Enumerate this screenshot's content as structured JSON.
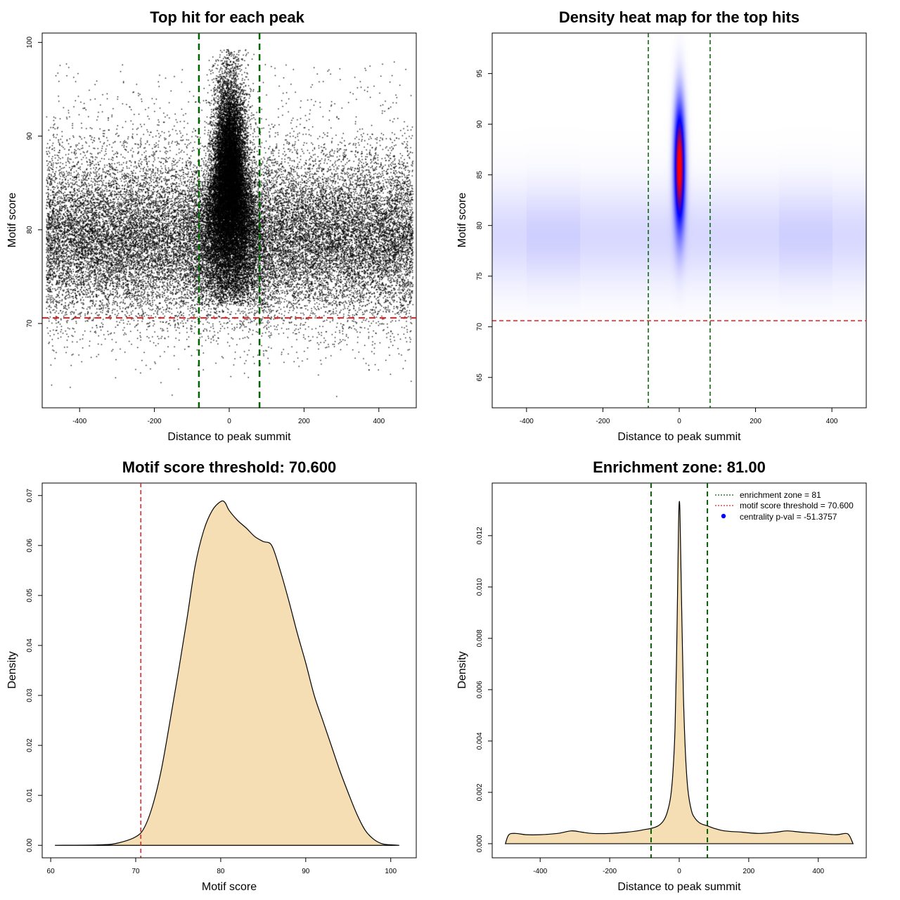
{
  "chart_data": [
    {
      "type": "scatter",
      "title": "Top hit for each peak",
      "xlabel": "Distance to peak summit",
      "ylabel": "Motif score",
      "xlim": [
        -500,
        500
      ],
      "ylim": [
        61,
        101
      ],
      "xticks": [
        -400,
        -200,
        0,
        200,
        400
      ],
      "yticks": [
        70,
        80,
        90,
        100
      ],
      "xtick_labels": [
        "-400",
        "-200",
        "0",
        "200",
        "400"
      ],
      "ytick_labels": [
        "70",
        "80",
        "90",
        "100"
      ],
      "background_point_count": 26000,
      "central_point_count": 20000,
      "background_score_mean": 79,
      "background_score_sd": 4.3,
      "central_position_sd": 22,
      "central_score_mean": 84,
      "central_score_sd": 5.5,
      "central_score_max": 99.3,
      "vlines": [
        -81,
        81
      ],
      "hline": 70.6,
      "vline_color": "#006400",
      "hline_color": "#e02020",
      "point_color": "#000000"
    },
    {
      "type": "heatmap",
      "title": "Density heat map for the top hits",
      "xlabel": "Distance to peak summit",
      "ylabel": "Motif score",
      "xlim": [
        -490,
        490
      ],
      "ylim": [
        62,
        99
      ],
      "xticks": [
        -400,
        -200,
        0,
        200,
        400
      ],
      "yticks": [
        65,
        70,
        75,
        80,
        85,
        90,
        95
      ],
      "xtick_labels": [
        "-400",
        "-200",
        "0",
        "200",
        "400"
      ],
      "ytick_labels": [
        "65",
        "70",
        "75",
        "80",
        "85",
        "90",
        "95"
      ],
      "hotspot_center": [
        0,
        86
      ],
      "hotspot_sd": [
        10,
        4.2
      ],
      "background_band_center": 79,
      "background_band_sd": 3.5,
      "colors": [
        "#ffffff",
        "#0000ff",
        "#ff0000"
      ],
      "vlines": [
        -81,
        81
      ],
      "hline": 70.6,
      "vline_color": "#006400",
      "hline_color": "#e02020"
    },
    {
      "type": "area",
      "title": "Motif score threshold: 70.600",
      "xlabel": "Motif score",
      "ylabel": "Density",
      "xlim": [
        59,
        103
      ],
      "ylim": [
        -0.0025,
        0.0725
      ],
      "xticks": [
        60,
        70,
        80,
        90,
        100
      ],
      "yticks": [
        0.0,
        0.01,
        0.02,
        0.03,
        0.04,
        0.05,
        0.06,
        0.07
      ],
      "xtick_labels": [
        "60",
        "70",
        "80",
        "90",
        "100"
      ],
      "ytick_labels": [
        "0.00",
        "0.01",
        "0.02",
        "0.03",
        "0.04",
        "0.05",
        "0.06",
        "0.07"
      ],
      "x": [
        60.5,
        66,
        68,
        70,
        71,
        72,
        73,
        74,
        75,
        76,
        77,
        78,
        79,
        80,
        80.5,
        81,
        82,
        83,
        84,
        85,
        86,
        87,
        88,
        89,
        90,
        91,
        92,
        93,
        94,
        95,
        96,
        97,
        98,
        99,
        100,
        101
      ],
      "values": [
        0,
        0.0001,
        0.0005,
        0.0017,
        0.0035,
        0.008,
        0.015,
        0.0245,
        0.0345,
        0.045,
        0.056,
        0.063,
        0.067,
        0.0688,
        0.0686,
        0.067,
        0.065,
        0.0635,
        0.0618,
        0.0608,
        0.06,
        0.055,
        0.049,
        0.0425,
        0.0365,
        0.03,
        0.025,
        0.02,
        0.015,
        0.0105,
        0.0063,
        0.003,
        0.0012,
        0.0003,
        0.0001,
        0
      ],
      "fill": "#f5deb3",
      "vline": 70.6,
      "vline_color": "#e02020"
    },
    {
      "type": "area",
      "title": "Enrichment zone: 81.00",
      "xlabel": "Distance to peak summit",
      "ylabel": "Density",
      "xlim": [
        -538,
        538
      ],
      "ylim": [
        -0.00055,
        0.01405
      ],
      "xticks": [
        -400,
        -200,
        0,
        200,
        400
      ],
      "yticks": [
        0.0,
        0.002,
        0.004,
        0.006,
        0.008,
        0.01,
        0.012
      ],
      "xtick_labels": [
        "-400",
        "-200",
        "0",
        "200",
        "400"
      ],
      "ytick_labels": [
        "0.000",
        "0.002",
        "0.004",
        "0.006",
        "0.008",
        "0.010",
        "0.012"
      ],
      "x": [
        -500,
        -490,
        -470,
        -440,
        -400,
        -350,
        -310,
        -280,
        -250,
        -200,
        -150,
        -120,
        -100,
        -80,
        -60,
        -45,
        -35,
        -25,
        -18,
        -12,
        -8,
        -4,
        -2,
        0,
        2,
        4,
        8,
        12,
        18,
        25,
        35,
        45,
        60,
        80,
        100,
        130,
        180,
        230,
        280,
        310,
        350,
        400,
        450,
        480,
        490,
        500
      ],
      "values": [
        0,
        0.00035,
        0.0004,
        0.00035,
        0.00035,
        0.0004,
        0.0005,
        0.00045,
        0.0004,
        0.0004,
        0.00045,
        0.0005,
        0.00055,
        0.0006,
        0.0007,
        0.0009,
        0.0012,
        0.0018,
        0.0028,
        0.0045,
        0.007,
        0.0105,
        0.0124,
        0.0133,
        0.013,
        0.0115,
        0.0085,
        0.0058,
        0.0035,
        0.0021,
        0.0013,
        0.001,
        0.0008,
        0.0007,
        0.0006,
        0.0005,
        0.00045,
        0.0004,
        0.00045,
        0.0005,
        0.00045,
        0.0004,
        0.00035,
        0.0004,
        0.0003,
        0
      ],
      "fill": "#f5deb3",
      "vlines": [
        -81,
        81
      ],
      "vline_color": "#006400",
      "legend": [
        {
          "label": "enrichment zone = 81",
          "color": "#006400",
          "style": "dotted-line"
        },
        {
          "label": "motif score threshold = 70.600",
          "color": "#e02020",
          "style": "dotted-line"
        },
        {
          "label": "centrality p-val = -51.3757",
          "color": "#0000ff",
          "style": "point"
        }
      ],
      "legend_position": "top-right"
    }
  ]
}
